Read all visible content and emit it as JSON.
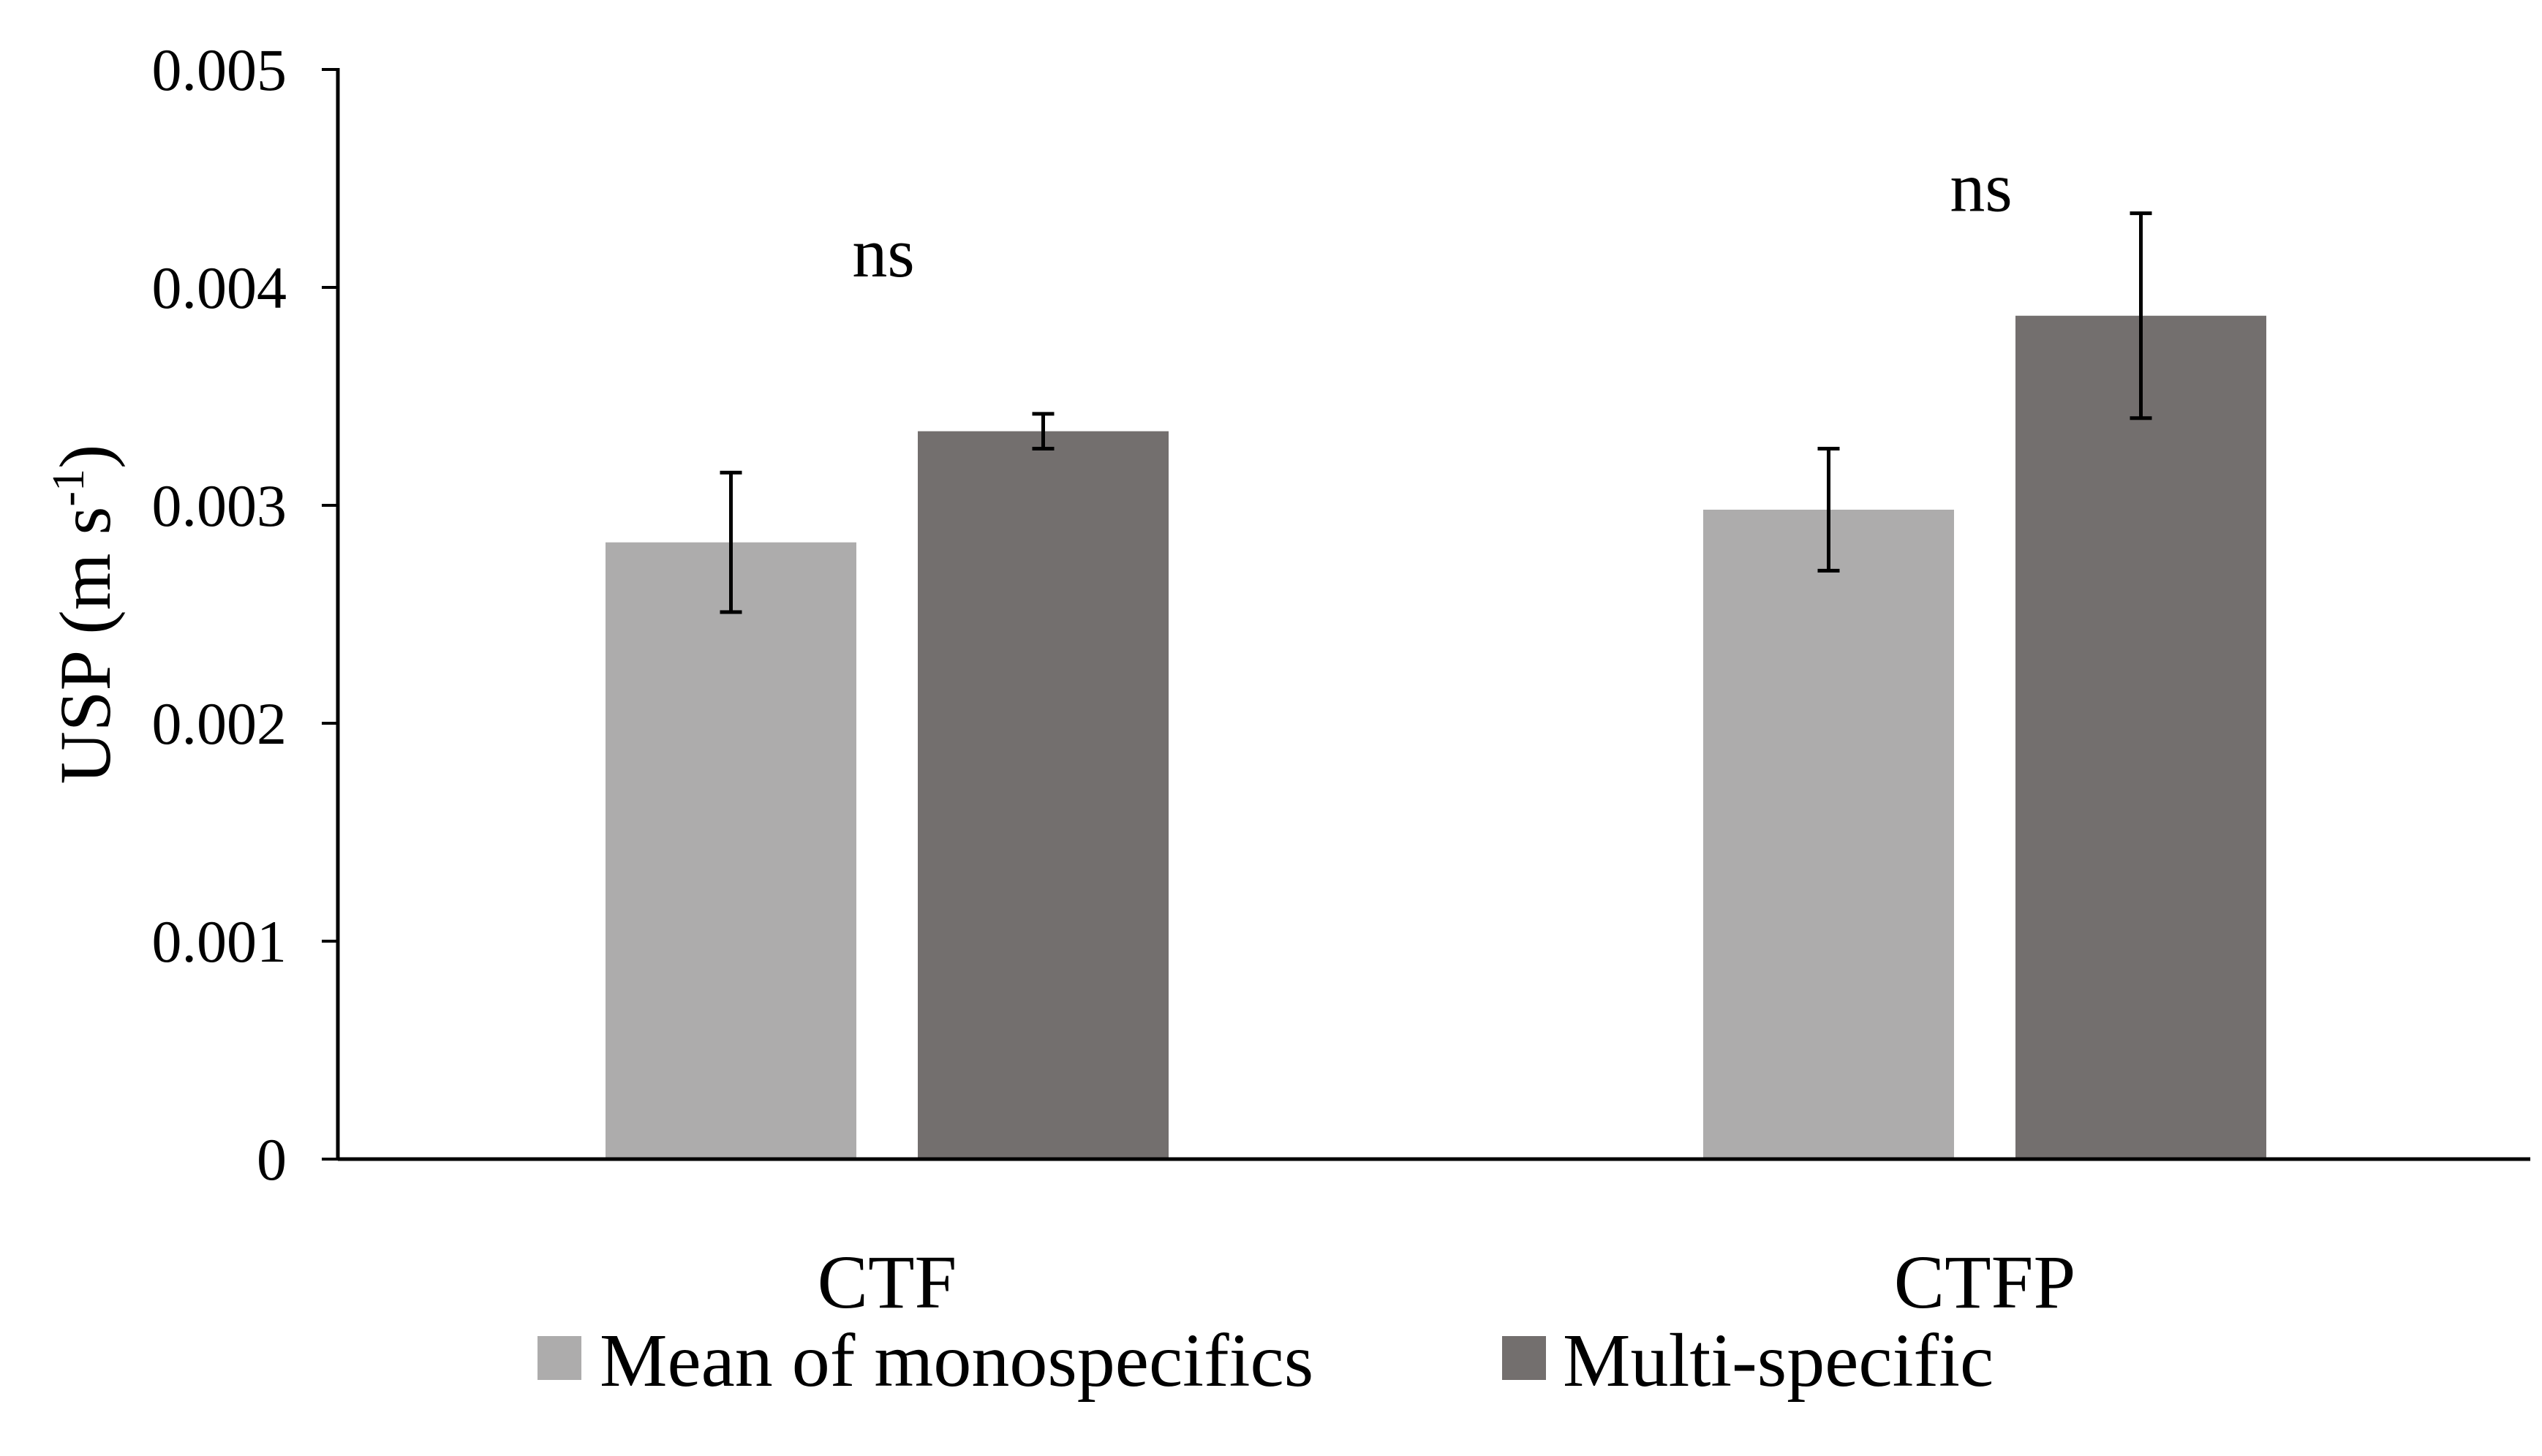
{
  "chart_data": {
    "type": "bar",
    "title": "",
    "xlabel": "",
    "ylabel": {
      "main": "USP (m s",
      "superscript": "-1",
      "close": ")"
    },
    "ylim": [
      0,
      0.005
    ],
    "yticks": [
      0,
      0.001,
      0.002,
      0.003,
      0.004,
      0.005
    ],
    "ytick_labels": [
      "0",
      "0.001",
      "0.002",
      "0.003",
      "0.004",
      "0.005"
    ],
    "categories": [
      "CTF",
      "CTFP"
    ],
    "series": [
      {
        "name": "Mean of monospecifics",
        "color": "#adacac",
        "values": [
          0.00283,
          0.00298
        ],
        "error": [
          0.00032,
          0.00028
        ]
      },
      {
        "name": "Multi-specific",
        "color": "#736f6e",
        "values": [
          0.00334,
          0.00387
        ],
        "error": [
          8e-05,
          0.00047
        ]
      }
    ],
    "annotations": [
      {
        "category": "CTF",
        "text": "ns",
        "y": 0.00405
      },
      {
        "category": "CTFP",
        "text": "ns",
        "y": 0.00435
      }
    ],
    "grid": false,
    "legend_position": "bottom"
  },
  "colors": {
    "axis": "#000000",
    "errorbar": "#000000"
  }
}
